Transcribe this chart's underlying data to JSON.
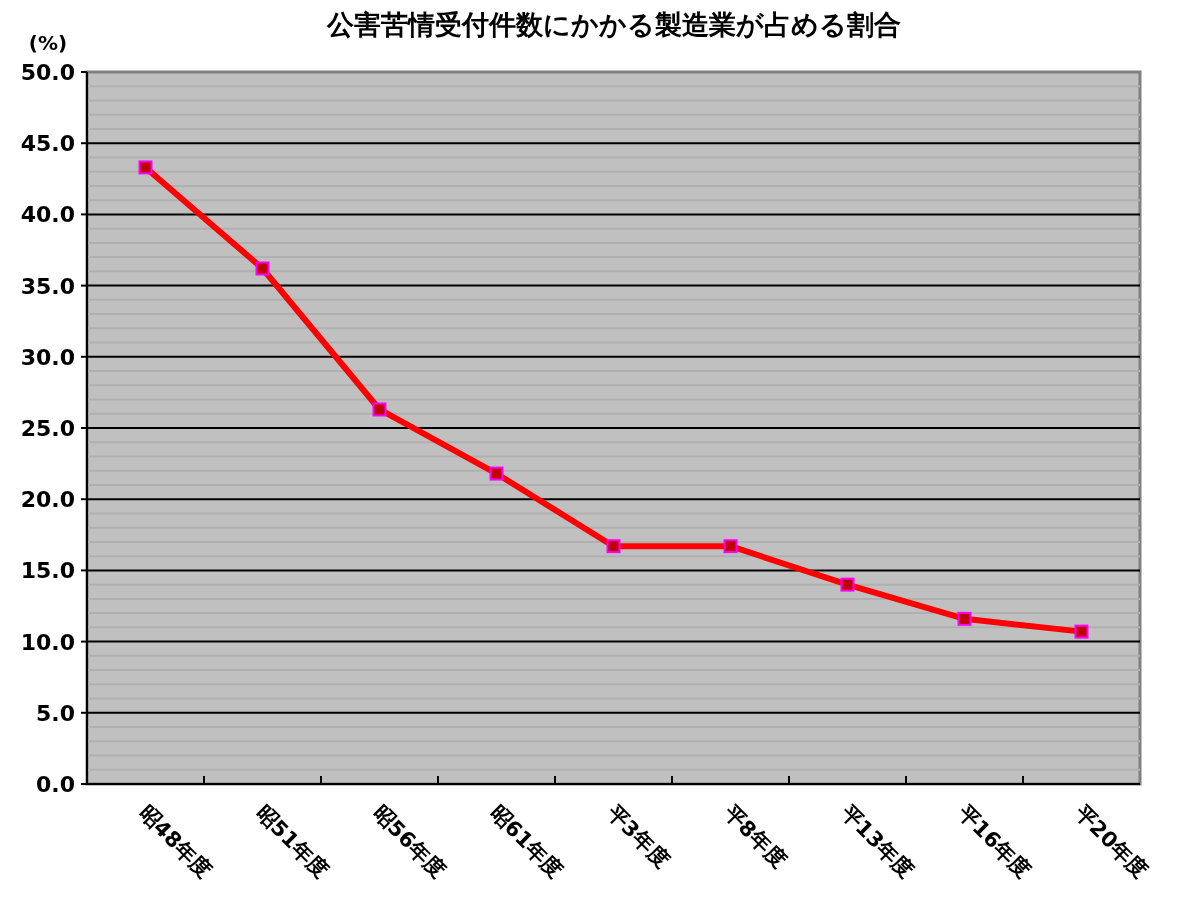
{
  "chart_data": {
    "type": "line",
    "title": "公害苦情受付件数にかかる製造業が占める割合",
    "ylabel": "(%)",
    "categories": [
      "昭48年度",
      "昭51年度",
      "昭56年度",
      "昭61年度",
      "平3年度",
      "平8年度",
      "平13年度",
      "平16年度",
      "平20年度"
    ],
    "series": [
      {
        "color": "#ff0000",
        "values": [
          43.3,
          36.2,
          26.3,
          21.8,
          16.7,
          16.7,
          14.0,
          11.6,
          10.7
        ]
      }
    ],
    "ylim": [
      0,
      50
    ],
    "yticks": [
      {
        "value": 0,
        "label": "0.0"
      },
      {
        "value": 5,
        "label": "5.0"
      },
      {
        "value": 10,
        "label": "10.0"
      },
      {
        "value": 15,
        "label": "15.0"
      },
      {
        "value": 20,
        "label": "20.0"
      },
      {
        "value": 25,
        "label": "25.0"
      },
      {
        "value": 30,
        "label": "30.0"
      },
      {
        "value": 35,
        "label": "35.0"
      },
      {
        "value": 40,
        "label": "40.0"
      },
      {
        "value": 45,
        "label": "45.0"
      },
      {
        "value": 50,
        "label": "50.0"
      }
    ],
    "grid": "y",
    "marker": "square",
    "line_style": "solid"
  }
}
